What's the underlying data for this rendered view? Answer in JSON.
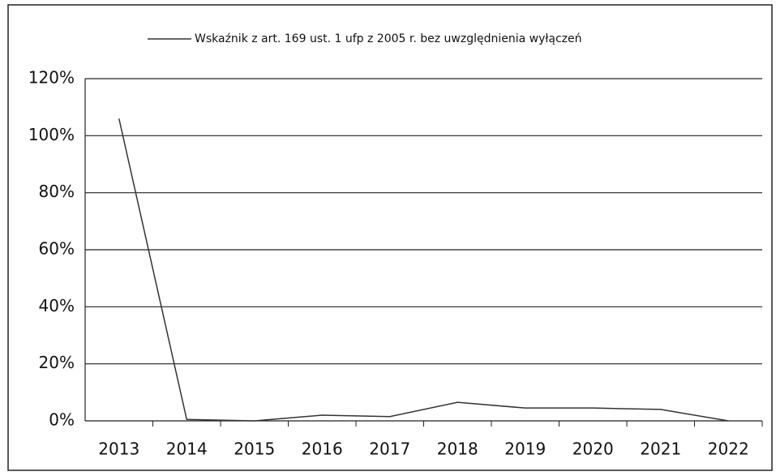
{
  "chart_data": {
    "type": "line",
    "categories": [
      "2013",
      "2014",
      "2015",
      "2016",
      "2017",
      "2018",
      "2019",
      "2020",
      "2021",
      "2022"
    ],
    "series": [
      {
        "name": "Wskaźnik z art. 169 ust. 1 ufp z 2005 r. bez uwzględnienia wyłączeń",
        "color": "#333333",
        "values": [
          106,
          0.5,
          0,
          2,
          1.5,
          6.5,
          4.5,
          4.5,
          4,
          0
        ]
      }
    ],
    "ylim": [
      0,
      120
    ],
    "yticks": [
      {
        "value": 0,
        "label": "0%"
      },
      {
        "value": 20,
        "label": "20%"
      },
      {
        "value": 40,
        "label": "40%"
      },
      {
        "value": 60,
        "label": "60%"
      },
      {
        "value": 80,
        "label": "80%"
      },
      {
        "value": 100,
        "label": "100%"
      },
      {
        "value": 120,
        "label": "120%"
      }
    ],
    "grid": true,
    "legend": "top"
  }
}
